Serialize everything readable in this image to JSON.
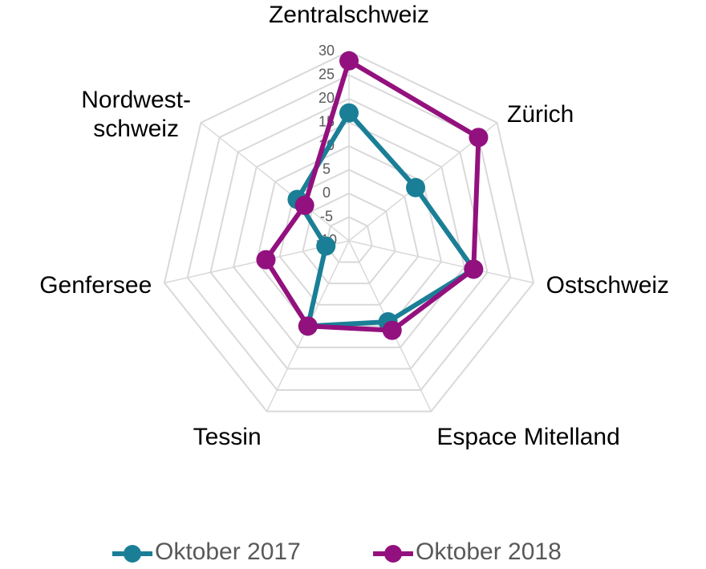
{
  "chart_data": {
    "type": "radar",
    "categories": [
      "Zentralschweiz",
      "Zürich",
      "Ostschweiz",
      "Espace Mitelland",
      "Tessin",
      "Genfersee",
      "Nordwest-\nschweiz"
    ],
    "series": [
      {
        "name": "Oktober 2017",
        "color": "#1a7f96",
        "values": [
          17,
          8,
          17,
          9,
          10,
          -5,
          4
        ]
      },
      {
        "name": "Oktober 2018",
        "color": "#93117e",
        "values": [
          28,
          25,
          17,
          11,
          10,
          8,
          2
        ]
      }
    ],
    "ylim": [
      -10,
      30
    ],
    "yticks": [
      -10,
      -5,
      0,
      5,
      10,
      15,
      20,
      25,
      30
    ],
    "grid": true,
    "legend": "bottom"
  }
}
